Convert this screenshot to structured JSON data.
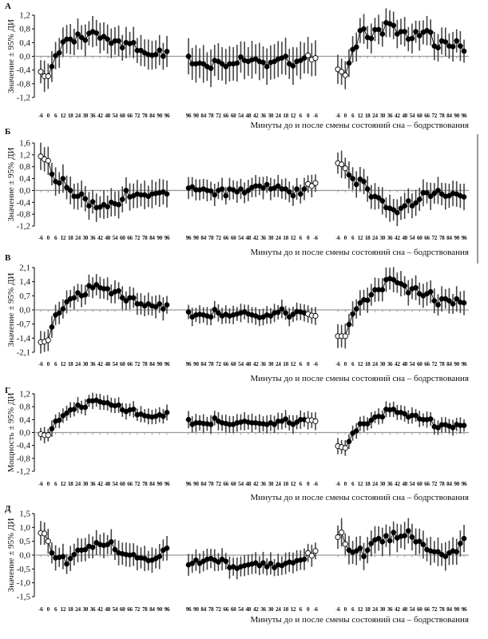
{
  "chart_data": {
    "type": "line",
    "xlabel": "Минуты до и после смены состояний сна – бодрствования",
    "xticks_forward": [
      "-6",
      "0",
      "6",
      "12",
      "18",
      "24",
      "30",
      "36",
      "42",
      "48",
      "54",
      "60",
      "66",
      "72",
      "78",
      "84",
      "90",
      "96"
    ],
    "xticks_reverse": [
      "96",
      "90",
      "84",
      "78",
      "72",
      "66",
      "60",
      "54",
      "48",
      "42",
      "36",
      "30",
      "24",
      "18",
      "12",
      "6",
      "0",
      "-6"
    ],
    "colors": {
      "point": "#000000",
      "open_fill": "#ffffff",
      "errorbar": "#444444",
      "zero_line": "#9a9a9a",
      "axis": "#000000"
    },
    "panels": [
      {
        "letter": "А",
        "ylabel": "Значение ± 95% ДИ",
        "ylim": [
          -1.2,
          1.2
        ],
        "yticks": [
          "1,2",
          "0,8",
          "0,4",
          "0,0",
          "-0,4",
          "-0,8",
          "-1,2"
        ],
        "subplots": [
          {
            "x_range": [
              -6,
              96
            ],
            "reversed": false,
            "open": "first3",
            "ci": 0.4,
            "values": [
              -0.45,
              -0.58,
              -0.58,
              -0.3,
              0.02,
              0.1,
              0.42,
              0.5,
              0.5,
              0.42,
              0.65,
              0.55,
              0.47,
              0.67,
              0.72,
              0.68,
              0.53,
              0.58,
              0.5,
              0.38,
              0.45,
              0.45,
              0.25,
              0.4,
              0.37,
              0.4,
              0.17,
              0.17,
              0.1,
              0.05,
              0.03,
              0.05,
              0.18,
              0.0,
              0.14
            ]
          },
          {
            "x_range": [
              -6,
              96
            ],
            "reversed": true,
            "open": "last3",
            "ci": 0.48,
            "values": [
              0.0,
              -0.22,
              -0.22,
              -0.2,
              -0.22,
              -0.3,
              -0.35,
              -0.12,
              -0.15,
              -0.22,
              -0.3,
              -0.22,
              -0.22,
              -0.2,
              -0.02,
              -0.12,
              -0.15,
              -0.1,
              -0.08,
              -0.15,
              -0.18,
              -0.3,
              -0.18,
              -0.15,
              -0.08,
              -0.05,
              0.0,
              -0.22,
              -0.28,
              -0.15,
              -0.12,
              -0.05,
              0.03,
              -0.1,
              -0.05
            ]
          },
          {
            "x_range": [
              -6,
              96
            ],
            "reversed": false,
            "open": "first3",
            "ci": 0.38,
            "values": [
              -0.38,
              -0.45,
              -0.55,
              -0.2,
              0.2,
              0.27,
              0.75,
              0.8,
              0.55,
              0.52,
              0.78,
              0.78,
              0.65,
              0.98,
              0.95,
              0.9,
              0.65,
              0.72,
              0.72,
              0.5,
              0.52,
              0.72,
              0.6,
              0.7,
              0.75,
              0.7,
              0.3,
              0.25,
              0.45,
              0.42,
              0.3,
              0.28,
              0.45,
              0.3,
              0.15
            ]
          }
        ]
      },
      {
        "letter": "Б",
        "ylabel": "Значение ± 95% ДИ",
        "ylim": [
          -1.2,
          1.6
        ],
        "yticks": [
          "1,6",
          "1,2",
          "0,8",
          "0,4",
          "0,0",
          "-0,4",
          "-0,8",
          "-1,2"
        ],
        "subplots": [
          {
            "x_range": [
              -6,
              96
            ],
            "reversed": false,
            "open": "first3",
            "ci": 0.42,
            "values": [
              1.15,
              1.05,
              1.0,
              0.55,
              0.3,
              0.25,
              0.4,
              0.1,
              0.0,
              -0.2,
              -0.2,
              -0.12,
              -0.28,
              -0.52,
              -0.38,
              -0.58,
              -0.56,
              -0.48,
              -0.55,
              -0.4,
              -0.45,
              -0.48,
              -0.3,
              0.0,
              -0.22,
              -0.18,
              -0.12,
              -0.15,
              -0.15,
              -0.2,
              -0.12,
              -0.1,
              -0.08,
              -0.05,
              -0.12
            ]
          },
          {
            "x_range": [
              -6,
              96
            ],
            "reversed": true,
            "open": "last3",
            "ci": 0.33,
            "values": [
              0.08,
              0.12,
              0.02,
              0.02,
              0.05,
              0.0,
              -0.02,
              -0.15,
              0.0,
              0.05,
              -0.18,
              0.05,
              0.02,
              -0.05,
              0.05,
              -0.08,
              0.0,
              0.1,
              0.15,
              0.15,
              0.08,
              0.2,
              0.05,
              0.08,
              0.15,
              0.05,
              0.05,
              -0.05,
              -0.18,
              0.05,
              -0.12,
              0.05,
              0.22,
              0.15,
              0.25
            ]
          },
          {
            "x_range": [
              -6,
              96
            ],
            "reversed": false,
            "open": "first3",
            "ci": 0.4,
            "values": [
              0.92,
              0.88,
              0.75,
              0.52,
              0.4,
              0.2,
              0.38,
              0.3,
              0.05,
              -0.22,
              -0.2,
              -0.25,
              -0.35,
              -0.58,
              -0.6,
              -0.65,
              -0.75,
              -0.6,
              -0.52,
              -0.35,
              -0.52,
              -0.42,
              -0.3,
              -0.08,
              -0.08,
              -0.2,
              -0.1,
              0.0,
              -0.12,
              -0.2,
              -0.18,
              -0.1,
              -0.12,
              -0.18,
              -0.22
            ]
          }
        ]
      },
      {
        "letter": "В",
        "ylabel": "Значение ± 95% ДИ",
        "ylim": [
          -2.1,
          2.1
        ],
        "yticks": [
          "2,1",
          "1,4",
          "0,7",
          "0,0",
          "-0,7",
          "-1,4",
          "-2,1"
        ],
        "subplots": [
          {
            "x_range": [
              -6,
              96
            ],
            "reversed": false,
            "open": "first3",
            "ci": 0.5,
            "values": [
              -1.6,
              -1.58,
              -1.5,
              -0.85,
              -0.25,
              -0.15,
              0.05,
              0.4,
              0.55,
              0.6,
              0.85,
              0.7,
              0.75,
              1.2,
              1.1,
              1.25,
              1.1,
              1.05,
              1.05,
              0.8,
              0.9,
              0.95,
              0.6,
              0.45,
              0.6,
              0.6,
              0.3,
              0.3,
              0.2,
              0.3,
              0.2,
              0.15,
              0.3,
              0.05,
              0.25
            ]
          },
          {
            "x_range": [
              -6,
              96
            ],
            "reversed": true,
            "open": "last3",
            "ci": 0.4,
            "values": [
              -0.1,
              -0.35,
              -0.25,
              -0.22,
              -0.25,
              -0.3,
              -0.35,
              0.02,
              -0.15,
              -0.3,
              -0.22,
              -0.3,
              -0.25,
              -0.2,
              -0.15,
              -0.1,
              -0.2,
              -0.25,
              -0.3,
              -0.38,
              -0.35,
              -0.25,
              -0.3,
              -0.15,
              -0.12,
              0.05,
              -0.15,
              -0.35,
              -0.22,
              -0.08,
              -0.1,
              -0.15,
              -0.2,
              -0.28,
              -0.3
            ]
          },
          {
            "x_range": [
              -6,
              96
            ],
            "reversed": false,
            "open": "first3",
            "ci": 0.55,
            "values": [
              -1.3,
              -1.3,
              -1.3,
              -0.72,
              -0.2,
              0.05,
              0.35,
              0.5,
              0.48,
              0.75,
              1.0,
              1.0,
              1.0,
              1.5,
              1.55,
              1.5,
              1.35,
              1.3,
              1.2,
              0.85,
              1.05,
              1.1,
              0.8,
              0.7,
              0.8,
              0.9,
              0.45,
              0.25,
              0.55,
              0.55,
              0.45,
              0.3,
              0.55,
              0.38,
              0.35
            ]
          }
        ]
      },
      {
        "letter": "Г",
        "ylabel": "Мощность ± 95% ДИ",
        "ylim": [
          -1.2,
          1.2
        ],
        "yticks": [
          "1,2",
          "0,8",
          "0,4",
          "0,0",
          "-0,4",
          "-0,8",
          "-1,2"
        ],
        "subplots": [
          {
            "x_range": [
              -6,
              96
            ],
            "reversed": false,
            "open": "first3",
            "ci": 0.22,
            "values": [
              -0.05,
              -0.08,
              -0.08,
              0.12,
              0.35,
              0.38,
              0.52,
              0.6,
              0.7,
              0.72,
              0.85,
              0.78,
              0.78,
              0.98,
              0.98,
              1.0,
              0.95,
              0.92,
              0.92,
              0.85,
              0.83,
              0.85,
              0.7,
              0.65,
              0.7,
              0.72,
              0.55,
              0.57,
              0.52,
              0.5,
              0.48,
              0.5,
              0.55,
              0.5,
              0.62
            ]
          },
          {
            "x_range": [
              -6,
              96
            ],
            "reversed": true,
            "open": "last3",
            "ci": 0.25,
            "values": [
              0.4,
              0.25,
              0.3,
              0.3,
              0.28,
              0.27,
              0.25,
              0.45,
              0.35,
              0.3,
              0.28,
              0.25,
              0.25,
              0.3,
              0.32,
              0.35,
              0.32,
              0.3,
              0.3,
              0.28,
              0.27,
              0.25,
              0.3,
              0.25,
              0.35,
              0.35,
              0.42,
              0.3,
              0.25,
              0.32,
              0.4,
              0.4,
              0.38,
              0.38,
              0.35
            ]
          },
          {
            "x_range": [
              -6,
              96
            ],
            "reversed": false,
            "open": "first3",
            "ci": 0.22,
            "values": [
              -0.42,
              -0.45,
              -0.48,
              -0.28,
              -0.02,
              0.05,
              0.27,
              0.27,
              0.27,
              0.38,
              0.48,
              0.5,
              0.48,
              0.72,
              0.7,
              0.72,
              0.62,
              0.62,
              0.58,
              0.48,
              0.53,
              0.53,
              0.42,
              0.4,
              0.4,
              0.42,
              0.18,
              0.15,
              0.24,
              0.24,
              0.2,
              0.15,
              0.25,
              0.22,
              0.22
            ]
          }
        ]
      },
      {
        "letter": "Д",
        "ylabel": "Значение ± 95% ДИ",
        "ylim": [
          -1.5,
          1.5
        ],
        "yticks": [
          "1,5",
          "1,0",
          "0,5",
          "0,0",
          "-0,5",
          "-1,0",
          "-1,5"
        ],
        "subplots": [
          {
            "x_range": [
              -6,
              96
            ],
            "reversed": false,
            "open": "first3",
            "ci": 0.4,
            "values": [
              0.8,
              0.78,
              0.5,
              0.08,
              -0.1,
              -0.08,
              -0.05,
              -0.32,
              -0.12,
              0.02,
              0.18,
              0.18,
              0.2,
              0.32,
              0.28,
              0.45,
              0.38,
              0.35,
              0.38,
              0.48,
              0.2,
              0.08,
              0.05,
              0.02,
              0.0,
              0.02,
              -0.1,
              -0.1,
              -0.12,
              -0.2,
              -0.18,
              -0.12,
              -0.05,
              0.18,
              0.25
            ]
          },
          {
            "x_range": [
              -6,
              96
            ],
            "reversed": true,
            "open": "last3",
            "ci": 0.35,
            "values": [
              -0.35,
              -0.3,
              -0.18,
              -0.3,
              -0.22,
              -0.15,
              -0.12,
              -0.18,
              -0.25,
              -0.15,
              -0.22,
              -0.45,
              -0.42,
              -0.48,
              -0.42,
              -0.38,
              -0.35,
              -0.32,
              -0.28,
              -0.38,
              -0.28,
              -0.42,
              -0.3,
              -0.45,
              -0.35,
              -0.38,
              -0.3,
              -0.25,
              -0.28,
              -0.2,
              -0.18,
              -0.15,
              0.08,
              -0.02,
              0.15
            ]
          },
          {
            "x_range": [
              -6,
              96
            ],
            "reversed": false,
            "open": "first3",
            "ci": 0.45,
            "values": [
              0.65,
              0.82,
              0.4,
              0.18,
              0.1,
              0.15,
              0.25,
              -0.05,
              0.18,
              0.42,
              0.55,
              0.6,
              0.48,
              0.7,
              0.52,
              0.82,
              0.62,
              0.68,
              0.7,
              0.88,
              0.65,
              0.48,
              0.5,
              0.38,
              0.2,
              0.15,
              0.12,
              0.12,
              0.02,
              -0.05,
              0.08,
              0.15,
              0.12,
              0.42,
              0.6
            ]
          }
        ]
      }
    ]
  }
}
